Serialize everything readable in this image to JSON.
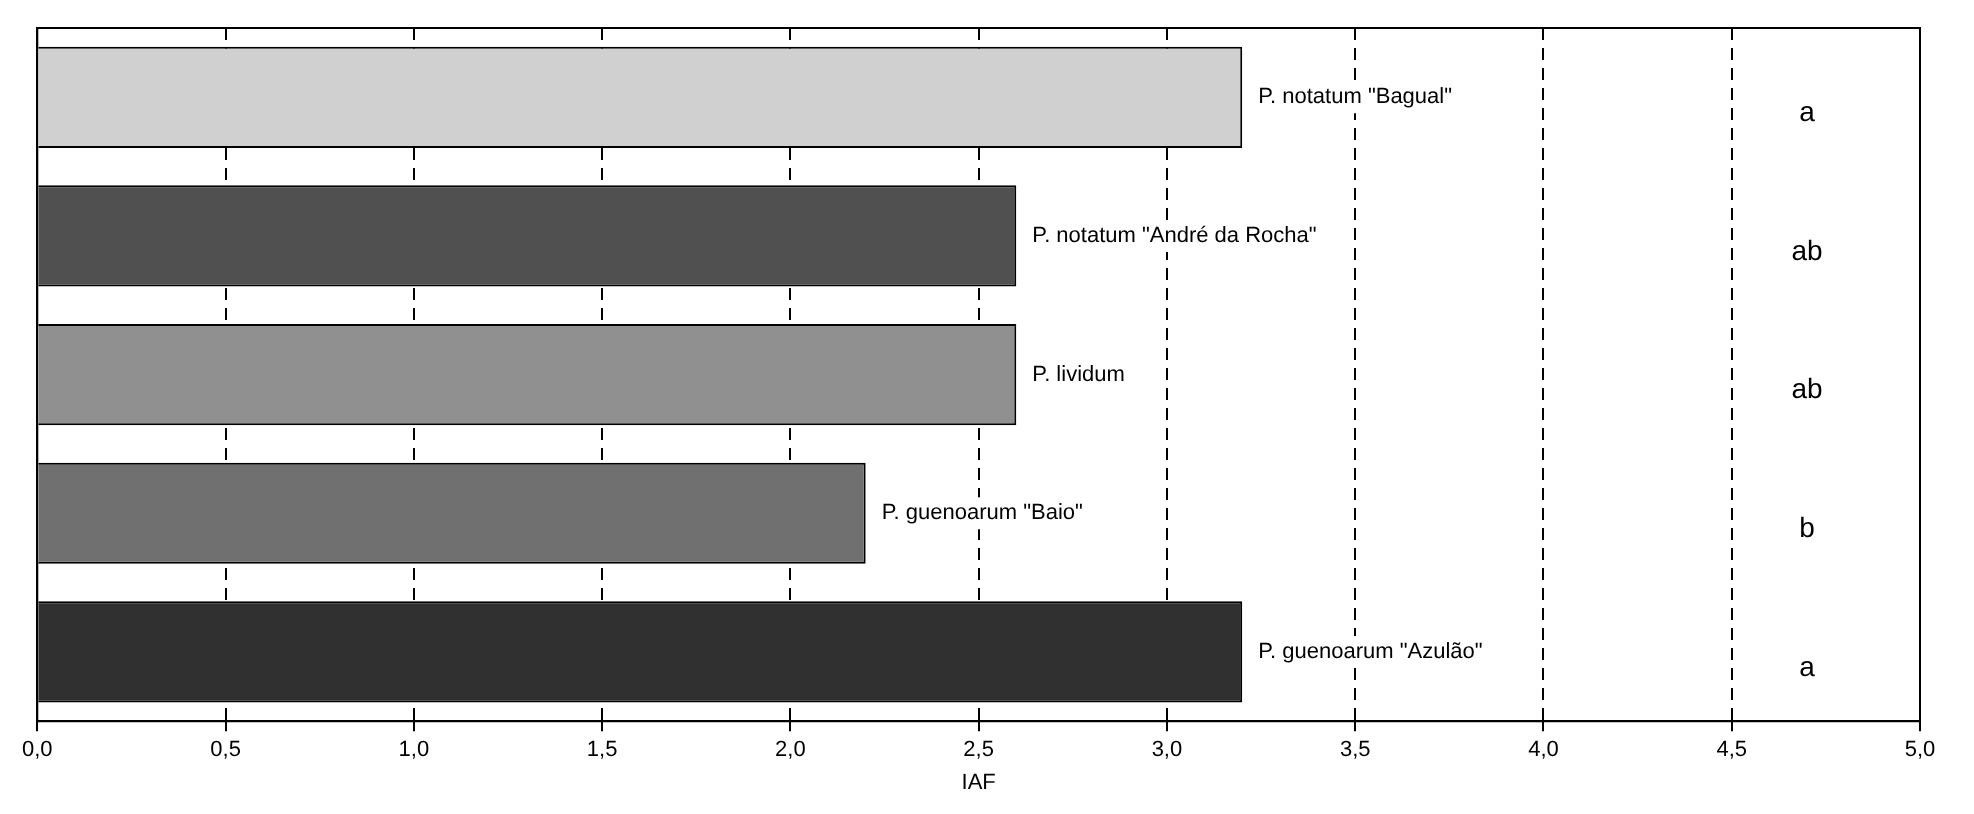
{
  "chart_data": {
    "type": "bar",
    "orientation": "horizontal",
    "xlabel": "IAF",
    "categories": [
      "P. notatum \"Bagual\"",
      "P. notatum \"André da Rocha\"",
      "P. lividum",
      "P. guenoarum \"Baio\"",
      "P. guenoarum \"Azulão\""
    ],
    "values": [
      3.2,
      2.6,
      2.6,
      2.2,
      3.2
    ],
    "colors": [
      "#d0d0d0",
      "#505050",
      "#909090",
      "#707070",
      "#303030"
    ],
    "xlim": [
      0,
      5
    ],
    "xticks": [
      {
        "value": 0,
        "label": "0,0"
      },
      {
        "value": 0.5,
        "label": "0,5"
      },
      {
        "value": 1,
        "label": "1,0"
      },
      {
        "value": 1.5,
        "label": "1,5"
      },
      {
        "value": 2,
        "label": "2,0"
      },
      {
        "value": 2.5,
        "label": "2,5"
      },
      {
        "value": 3,
        "label": "3,0"
      },
      {
        "value": 3.5,
        "label": "3,5"
      },
      {
        "value": 4,
        "label": "4,0"
      },
      {
        "value": 4.5,
        "label": "4,5"
      },
      {
        "value": 5,
        "label": "5,0"
      }
    ],
    "grid": "x",
    "tick_labels": "x",
    "legend": false,
    "annotations": [
      "a",
      "ab",
      "ab",
      "b",
      "a"
    ]
  }
}
